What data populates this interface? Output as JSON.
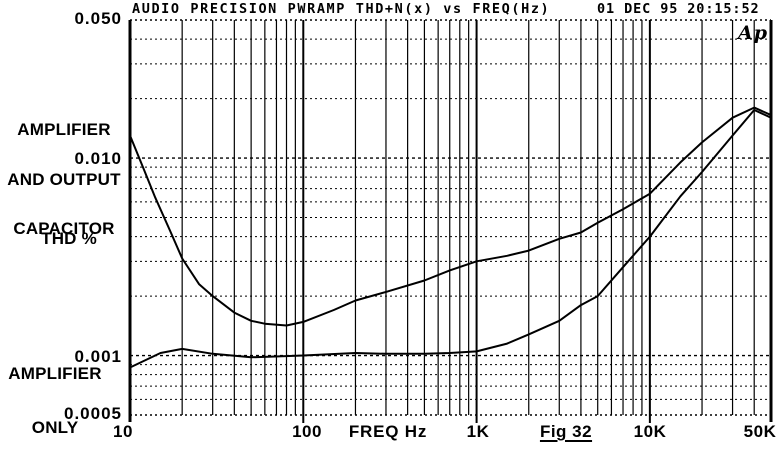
{
  "header": {
    "title": "AUDIO PRECISION PWRAMP THD+N(x) vs FREQ(Hz)",
    "timestamp": "01 DEC 95 20:15:52"
  },
  "logo_text": "Ap",
  "labels": {
    "y_axis_unit": "THD %",
    "x_axis_unit": "FREQ Hz",
    "figure": "Fig 32",
    "upper_series_line1": "AMPLIFIER",
    "upper_series_line2": "AND OUTPUT",
    "upper_series_line3": "CAPACITOR",
    "lower_series_line1": "AMPLIFIER",
    "lower_series_line2": "ONLY"
  },
  "y_ticks": [
    "0.050",
    "0.010",
    "0.001",
    "0.0005"
  ],
  "x_ticks": [
    "10",
    "100",
    "1K",
    "10K",
    "50K"
  ],
  "colors": {
    "ink": "#000000",
    "paper": "#ffffff"
  },
  "chart_data": {
    "type": "line",
    "title": "AUDIO PRECISION PWRAMP THD+N(x) vs FREQ(Hz)",
    "xlabel": "FREQ Hz",
    "ylabel": "THD %",
    "x_scale": "log",
    "y_scale": "log",
    "xlim": [
      10,
      50000
    ],
    "ylim": [
      0.0005,
      0.05
    ],
    "x_major_gridlines": [
      100,
      1000,
      10000
    ],
    "y_major_gridlines": [
      0.01,
      0.001
    ],
    "grid": "vertical solid log grid, horizontal dotted log grid",
    "legend_position": "annotations in left margin",
    "series": [
      {
        "name": "AMPLIFIER AND OUTPUT CAPACITOR",
        "points": [
          [
            10,
            0.013
          ],
          [
            12,
            0.0088
          ],
          [
            14,
            0.0063
          ],
          [
            17,
            0.0043
          ],
          [
            20,
            0.0031
          ],
          [
            25,
            0.0023
          ],
          [
            30,
            0.002
          ],
          [
            40,
            0.00165
          ],
          [
            50,
            0.0015
          ],
          [
            60,
            0.00145
          ],
          [
            80,
            0.00142
          ],
          [
            100,
            0.00148
          ],
          [
            150,
            0.0017
          ],
          [
            200,
            0.0019
          ],
          [
            300,
            0.0021
          ],
          [
            500,
            0.0024
          ],
          [
            700,
            0.0027
          ],
          [
            1000,
            0.003
          ],
          [
            1500,
            0.0032
          ],
          [
            2000,
            0.0034
          ],
          [
            3000,
            0.0039
          ],
          [
            4000,
            0.0042
          ],
          [
            5000,
            0.0047
          ],
          [
            7000,
            0.0055
          ],
          [
            10000,
            0.0066
          ],
          [
            15000,
            0.0095
          ],
          [
            20000,
            0.012
          ],
          [
            30000,
            0.016
          ],
          [
            40000,
            0.018
          ],
          [
            50000,
            0.0165
          ]
        ]
      },
      {
        "name": "AMPLIFIER ONLY",
        "points": [
          [
            10,
            0.00087
          ],
          [
            15,
            0.00103
          ],
          [
            20,
            0.00108
          ],
          [
            30,
            0.00102
          ],
          [
            50,
            0.00098
          ],
          [
            100,
            0.001
          ],
          [
            200,
            0.00103
          ],
          [
            300,
            0.00102
          ],
          [
            500,
            0.00102
          ],
          [
            700,
            0.00103
          ],
          [
            1000,
            0.00105
          ],
          [
            1500,
            0.00115
          ],
          [
            2000,
            0.00128
          ],
          [
            3000,
            0.0015
          ],
          [
            4000,
            0.0018
          ],
          [
            5000,
            0.002
          ],
          [
            7000,
            0.0028
          ],
          [
            10000,
            0.004
          ],
          [
            15000,
            0.0064
          ],
          [
            20000,
            0.0085
          ],
          [
            30000,
            0.013
          ],
          [
            40000,
            0.0175
          ],
          [
            50000,
            0.016
          ]
        ]
      }
    ]
  }
}
